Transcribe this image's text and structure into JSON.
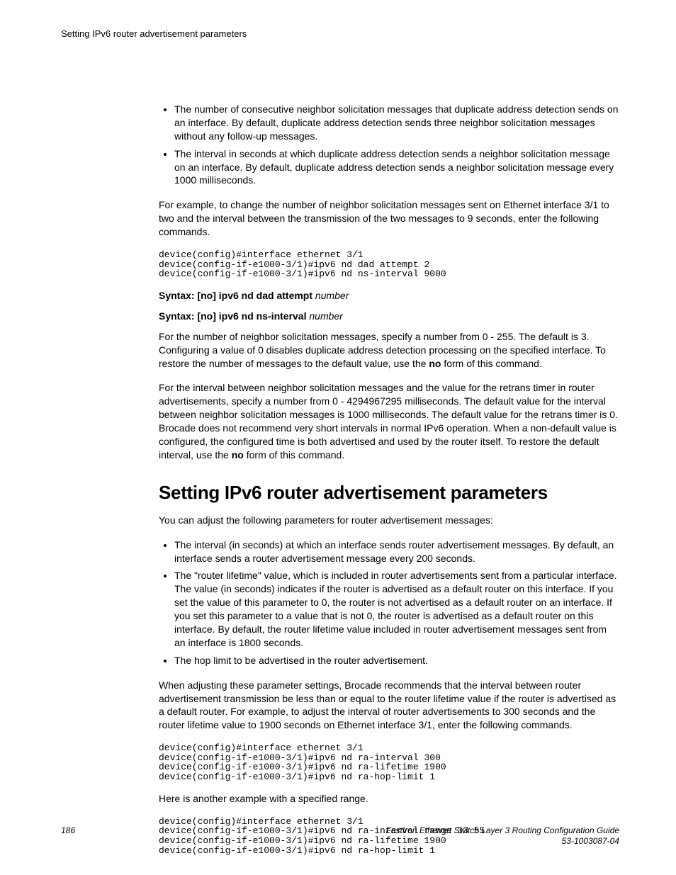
{
  "header": {
    "running": "Setting IPv6 router advertisement parameters"
  },
  "section1": {
    "bullets": [
      "The number of consecutive neighbor solicitation messages that duplicate address detection sends on an interface. By default, duplicate address detection sends three neighbor solicitation messages without any follow-up messages.",
      "The interval in seconds at which duplicate address detection sends a neighbor solicitation message on an interface. By default, duplicate address detection sends a neighbor solicitation message every 1000 milliseconds."
    ],
    "para_example": "For example, to change the number of neighbor solicitation messages sent on Ethernet interface 3/1 to two and the interval between the transmission of the two messages to 9 seconds, enter the following commands.",
    "cli1": "device(config)#interface ethernet 3/1\ndevice(config-if-e1000-3/1)#ipv6 nd dad attempt 2\ndevice(config-if-e1000-3/1)#ipv6 nd ns-interval 9000",
    "syntax1_bold": "Syntax: [no] ipv6 nd dad attempt",
    "syntax1_ital": "number",
    "syntax2_bold": "Syntax: [no] ipv6 nd ns-interval",
    "syntax2_ital": "number",
    "para_numattempts_a": "For the number of neighbor solicitation messages, specify a number from 0 - 255. The default is 3. Configuring a value of 0 disables duplicate address detection processing on the specified interface. To restore the number of messages to the default value, use the ",
    "para_numattempts_no": "no",
    "para_numattempts_b": " form of this command.",
    "para_interval_a": "For the interval between neighbor solicitation messages and the value for the retrans timer in router advertisements, specify a number from 0 - 4294967295 milliseconds. The default value for the interval between neighbor solicitation messages is 1000 milliseconds. The default value for the retrans timer is 0. Brocade does not recommend very short intervals in normal IPv6 operation. When a non-default value is configured, the configured time is both advertised and used by the router itself. To restore the default interval, use the ",
    "para_interval_no": "no",
    "para_interval_b": " form of this command."
  },
  "section2": {
    "heading": "Setting IPv6 router advertisement parameters",
    "para_intro": "You can adjust the following parameters for router advertisement messages:",
    "bullets": [
      "The interval (in seconds) at which an interface sends router advertisement messages. By default, an interface sends a router advertisement message every 200 seconds.",
      "The \"router lifetime\" value, which is included in router advertisements sent from a particular interface. The value (in seconds) indicates if the router is advertised as a default router on this interface. If you set the value of this parameter to 0, the router is not advertised as a default router on an interface. If you set this parameter to a value that is not 0, the router is advertised as a default router on this interface. By default, the router lifetime value included in router advertisement messages sent from an interface is 1800 seconds.",
      "The hop limit to be advertised in the router advertisement."
    ],
    "para_adjust": "When adjusting these parameter settings, Brocade recommends that the interval between router advertisement transmission be less than or equal to the router lifetime value if the router is advertised as a default router. For example, to adjust the interval of router advertisements to 300 seconds and the router lifetime value to 1900 seconds on Ethernet interface 3/1, enter the following commands.",
    "cli2": "device(config)#interface ethernet 3/1\ndevice(config-if-e1000-3/1)#ipv6 nd ra-interval 300\ndevice(config-if-e1000-3/1)#ipv6 nd ra-lifetime 1900\ndevice(config-if-e1000-3/1)#ipv6 nd ra-hop-limit 1",
    "para_another": "Here is another example with a specified range.",
    "cli3": "device(config)#interface ethernet 3/1\ndevice(config-if-e1000-3/1)#ipv6 nd ra-interval range 33 55\ndevice(config-if-e1000-3/1)#ipv6 nd ra-lifetime 1900\ndevice(config-if-e1000-3/1)#ipv6 nd ra-hop-limit 1"
  },
  "footer": {
    "page": "186",
    "doc_title": "FastIron Ethernet Switch Layer 3 Routing Configuration Guide",
    "doc_num": "53-1003087-04"
  }
}
